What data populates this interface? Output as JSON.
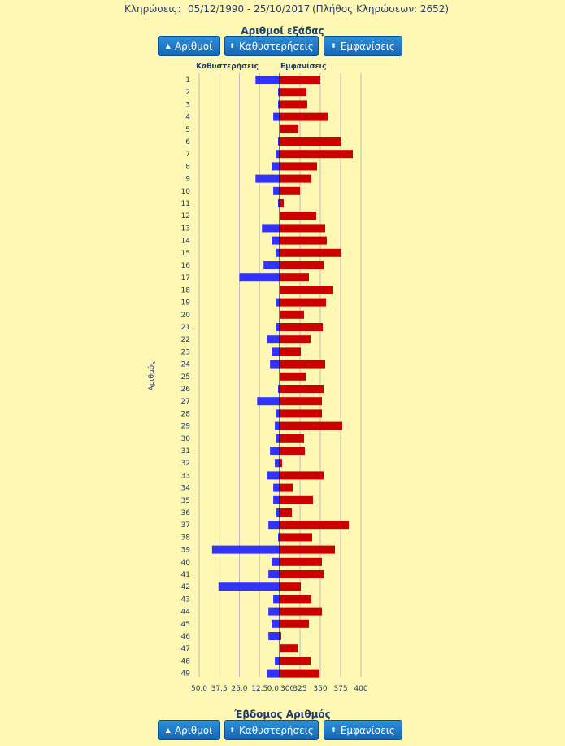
{
  "header": {
    "draws_label": "Κληρώσεις:",
    "date_range": "05/12/1990 - 25/10/2017",
    "draw_count_text": "(Πλήθος Κληρώσεων: 2652)"
  },
  "top_title": "Αριθμοί εξάδας",
  "bottom_title": "Έβδομος Αριθμός",
  "buttons": {
    "numbers": "Αριθμοί",
    "delays": "Καθυστερήσεις",
    "appearances": "Εμφανίσεις"
  },
  "colors": {
    "delays": "#3333ff",
    "appearances": "#cc0000",
    "background": "#fff8b4",
    "button": "#1f79c7"
  },
  "chart_data": {
    "type": "bar",
    "orientation": "horizontal-diverging",
    "title": "",
    "ylabel": "Αριθμός",
    "categories": [
      "1",
      "2",
      "3",
      "4",
      "5",
      "6",
      "7",
      "8",
      "9",
      "10",
      "11",
      "12",
      "13",
      "14",
      "15",
      "16",
      "17",
      "18",
      "19",
      "20",
      "21",
      "22",
      "23",
      "24",
      "25",
      "26",
      "27",
      "28",
      "29",
      "30",
      "31",
      "32",
      "33",
      "34",
      "35",
      "36",
      "37",
      "38",
      "39",
      "40",
      "41",
      "42",
      "43",
      "44",
      "45",
      "46",
      "47",
      "48",
      "49"
    ],
    "series": [
      {
        "name": "Καθυστερήσεις",
        "side": "left",
        "xlim": [
          0,
          50
        ],
        "ticks": [
          "50,0",
          "37,5",
          "25,0",
          "12,5",
          "0,0"
        ],
        "values": [
          15,
          1,
          1,
          4,
          0,
          1,
          2,
          5,
          15,
          4,
          1,
          0,
          11,
          5,
          2,
          10,
          25,
          0,
          2,
          0,
          2,
          8,
          5,
          6,
          0,
          1,
          14,
          2,
          3,
          2,
          6,
          3,
          8,
          4,
          4,
          2,
          7,
          1,
          42,
          5,
          7,
          38,
          4,
          7,
          5,
          7,
          0,
          3,
          8
        ]
      },
      {
        "name": "Εμφανίσεις",
        "side": "right",
        "xlim": [
          300,
          400
        ],
        "ticks": [
          "300",
          "325",
          "350",
          "375",
          "400"
        ],
        "values": [
          350,
          333,
          334,
          360,
          323,
          375,
          390,
          346,
          339,
          325,
          305,
          345,
          356,
          358,
          376,
          354,
          336,
          366,
          357,
          330,
          353,
          338,
          326,
          356,
          332,
          354,
          352,
          352,
          377,
          330,
          331,
          303,
          354,
          316,
          341,
          315,
          385,
          340,
          368,
          352,
          354,
          326,
          339,
          352,
          336,
          302,
          322,
          338,
          349
        ]
      }
    ],
    "grid": true,
    "legend": "top"
  }
}
